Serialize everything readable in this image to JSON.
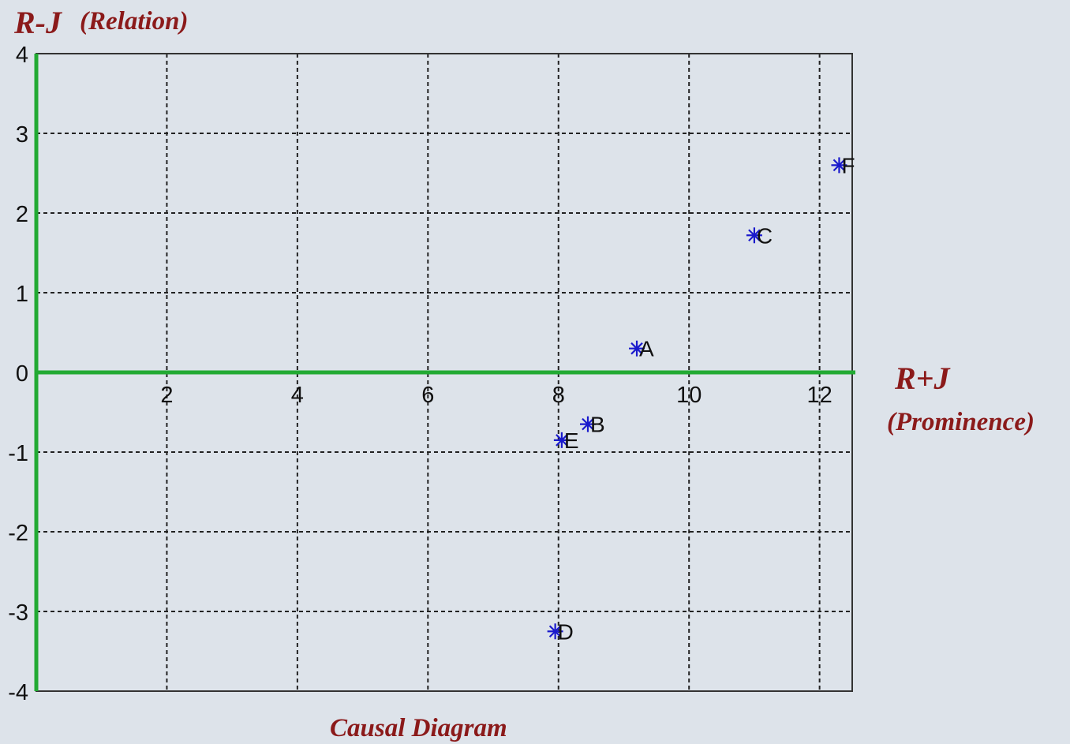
{
  "chart_data": {
    "type": "scatter",
    "title": "Causal Diagram",
    "ylabel_main": "R-J",
    "ylabel_sub": "(Relation)",
    "xlabel_main": "R+J",
    "xlabel_sub": "(Prominence)",
    "xlim": [
      0,
      12.5
    ],
    "ylim": [
      -4,
      4
    ],
    "x_ticks": [
      2,
      4,
      6,
      8,
      10,
      12
    ],
    "y_ticks": [
      -4,
      -3,
      -2,
      -1,
      0,
      1,
      2,
      3,
      4
    ],
    "grid": true,
    "points": [
      {
        "label": "A",
        "x": 9.2,
        "y": 0.3
      },
      {
        "label": "B",
        "x": 8.45,
        "y": -0.65
      },
      {
        "label": "C",
        "x": 11.0,
        "y": 1.72
      },
      {
        "label": "D",
        "x": 7.95,
        "y": -3.25
      },
      {
        "label": "E",
        "x": 8.05,
        "y": -0.85
      },
      {
        "label": "F",
        "x": 12.3,
        "y": 2.6
      }
    ],
    "colors": {
      "marker": "#1a1acc",
      "axis_lines": "#22aa33",
      "grid": "#222222",
      "title_text": "#8b1a1a",
      "background": "#dde3ea"
    }
  }
}
